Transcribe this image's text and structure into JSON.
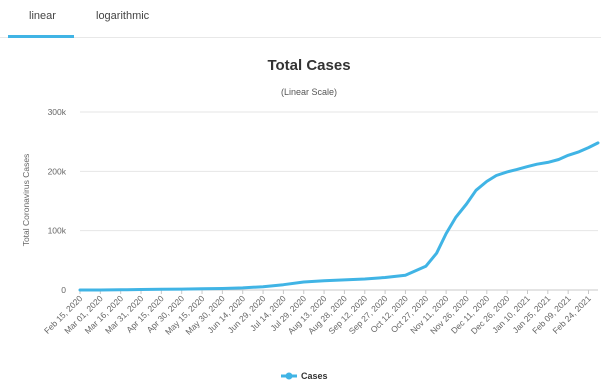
{
  "tabs": [
    {
      "label": "linear",
      "active": true
    },
    {
      "label": "logarithmic",
      "active": false
    }
  ],
  "colors": {
    "series": "#40b4e5",
    "accent": "#40b4e5"
  },
  "chart_data": {
    "type": "line",
    "title": "Total Cases",
    "subtitle": "(Linear Scale)",
    "ylabel": "Total Coronavirus Cases",
    "xlabel": "",
    "ylim": [
      0,
      300000
    ],
    "yticks": [
      0,
      100000,
      200000,
      300000
    ],
    "ytick_labels": [
      "0",
      "100k",
      "200k",
      "300k"
    ],
    "grid": true,
    "legend": "bottom",
    "x_tick_labels": [
      "Feb 15, 2020",
      "Mar 01, 2020",
      "Mar 16, 2020",
      "Mar 31, 2020",
      "Apr 15, 2020",
      "Apr 30, 2020",
      "May 15, 2020",
      "May 30, 2020",
      "Jun 14, 2020",
      "Jun 29, 2020",
      "Jul 14, 2020",
      "Jul 29, 2020",
      "Aug 13, 2020",
      "Aug 28, 2020",
      "Sep 12, 2020",
      "Sep 27, 2020",
      "Oct 12, 2020",
      "Oct 27, 2020",
      "Nov 11, 2020",
      "Nov 26, 2020",
      "Dec 11, 2020",
      "Dec 26, 2020",
      "Jan 10, 2021",
      "Jan 25, 2021",
      "Feb 09, 2021",
      "Feb 24, 2021"
    ],
    "series": [
      {
        "name": "Cases",
        "x": [
          "Feb 15, 2020",
          "Mar 01, 2020",
          "Mar 16, 2020",
          "Mar 31, 2020",
          "Apr 15, 2020",
          "Apr 30, 2020",
          "May 15, 2020",
          "May 30, 2020",
          "Jun 14, 2020",
          "Jun 29, 2020",
          "Jul 14, 2020",
          "Jul 29, 2020",
          "Aug 13, 2020",
          "Aug 28, 2020",
          "Sep 12, 2020",
          "Sep 27, 2020",
          "Oct 12, 2020",
          "Oct 27, 2020",
          "Nov 04, 2020",
          "Nov 11, 2020",
          "Nov 18, 2020",
          "Nov 26, 2020",
          "Dec 03, 2020",
          "Dec 11, 2020",
          "Dec 18, 2020",
          "Dec 26, 2020",
          "Jan 02, 2021",
          "Jan 10, 2021",
          "Jan 17, 2021",
          "Jan 25, 2021",
          "Feb 02, 2021",
          "Feb 09, 2021",
          "Feb 17, 2021",
          "Feb 24, 2021",
          "Mar 03, 2021"
        ],
        "values": [
          0,
          20,
          300,
          800,
          1200,
          1600,
          2000,
          2500,
          3500,
          5500,
          9000,
          13500,
          15500,
          17000,
          18500,
          21000,
          25000,
          40000,
          62000,
          95000,
          122000,
          145000,
          168000,
          183000,
          193000,
          199000,
          203000,
          208000,
          212000,
          215000,
          220000,
          227000,
          233000,
          240000,
          248000
        ]
      }
    ]
  }
}
